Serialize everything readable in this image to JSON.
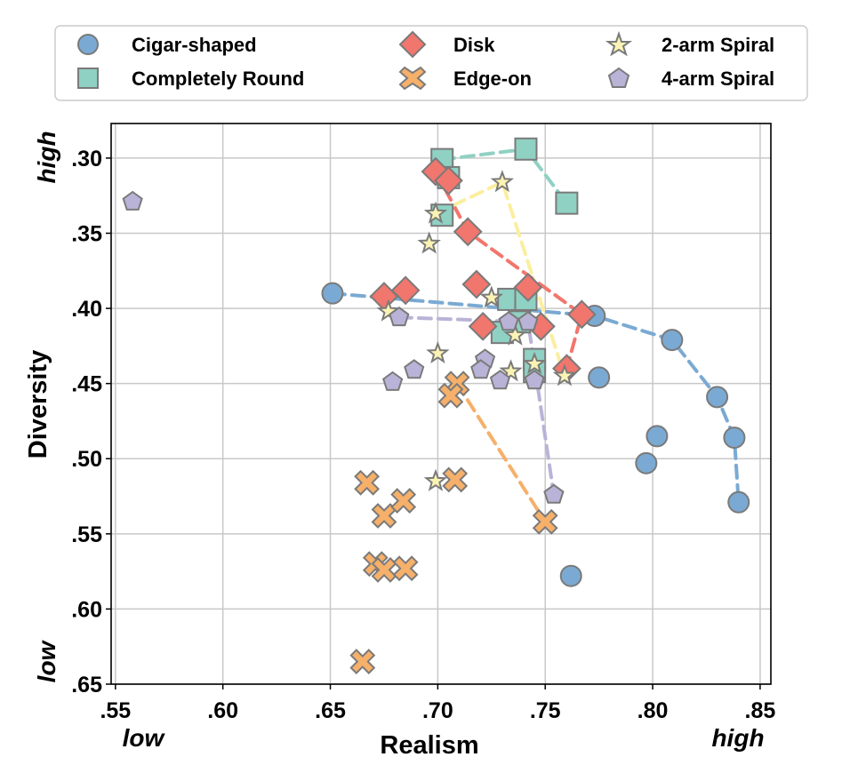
{
  "chart_data": {
    "type": "scatter",
    "xlabel": "Realism",
    "ylabel": "Diversity",
    "xlim": [
      0.548,
      0.855
    ],
    "ylim": [
      0.65,
      0.277
    ],
    "x_ticks": [
      {
        "value": 0.55,
        "label": ".55"
      },
      {
        "value": 0.6,
        "label": ".60"
      },
      {
        "value": 0.65,
        "label": ".65"
      },
      {
        "value": 0.7,
        "label": ".70"
      },
      {
        "value": 0.75,
        "label": ".75"
      },
      {
        "value": 0.8,
        "label": ".80"
      },
      {
        "value": 0.85,
        "label": ".85"
      }
    ],
    "y_ticks": [
      {
        "value": 0.3,
        "label": ".30"
      },
      {
        "value": 0.35,
        "label": ".35"
      },
      {
        "value": 0.4,
        "label": ".40"
      },
      {
        "value": 0.45,
        "label": ".45"
      },
      {
        "value": 0.5,
        "label": ".50"
      },
      {
        "value": 0.55,
        "label": ".55"
      },
      {
        "value": 0.6,
        "label": ".60"
      },
      {
        "value": 0.65,
        "label": ".65"
      }
    ],
    "annotations": {
      "x_low": "low",
      "x_high": "high",
      "y_high": "high",
      "y_low": "low"
    },
    "grid": true,
    "legend_position": "top",
    "series": [
      {
        "name": "Cigar-shaped",
        "marker": "circle",
        "color": "#7aaad3",
        "line_color": "#7aaad3",
        "points": [
          [
            0.651,
            0.39
          ],
          [
            0.773,
            0.405
          ],
          [
            0.775,
            0.446
          ],
          [
            0.809,
            0.421
          ],
          [
            0.83,
            0.459
          ],
          [
            0.802,
            0.485
          ],
          [
            0.838,
            0.486
          ],
          [
            0.797,
            0.503
          ],
          [
            0.84,
            0.529
          ],
          [
            0.762,
            0.578
          ]
        ],
        "trend": [
          [
            0.651,
            0.39
          ],
          [
            0.773,
            0.405
          ],
          [
            0.809,
            0.421
          ],
          [
            0.83,
            0.459
          ],
          [
            0.838,
            0.486
          ],
          [
            0.84,
            0.529
          ]
        ]
      },
      {
        "name": "Completely Round",
        "marker": "square",
        "color": "#8fd1c3",
        "line_color": "#8fd1c3",
        "points": [
          [
            0.702,
            0.301
          ],
          [
            0.705,
            0.313
          ],
          [
            0.741,
            0.294
          ],
          [
            0.76,
            0.33
          ],
          [
            0.702,
            0.338
          ],
          [
            0.733,
            0.394
          ],
          [
            0.741,
            0.394
          ],
          [
            0.738,
            0.409
          ],
          [
            0.73,
            0.416
          ],
          [
            0.745,
            0.434
          ],
          [
            0.745,
            0.442
          ]
        ],
        "trend": [
          [
            0.702,
            0.301
          ],
          [
            0.741,
            0.294
          ],
          [
            0.76,
            0.33
          ]
        ]
      },
      {
        "name": "Disk",
        "marker": "diamond",
        "color": "#f1766d",
        "line_color": "#f1766d",
        "points": [
          [
            0.699,
            0.309
          ],
          [
            0.705,
            0.315
          ],
          [
            0.714,
            0.349
          ],
          [
            0.718,
            0.384
          ],
          [
            0.742,
            0.386
          ],
          [
            0.675,
            0.392
          ],
          [
            0.685,
            0.388
          ],
          [
            0.767,
            0.404
          ],
          [
            0.748,
            0.412
          ],
          [
            0.721,
            0.412
          ],
          [
            0.76,
            0.44
          ]
        ],
        "trend": [
          [
            0.699,
            0.309
          ],
          [
            0.714,
            0.349
          ],
          [
            0.767,
            0.404
          ],
          [
            0.76,
            0.44
          ]
        ]
      },
      {
        "name": "Edge-on",
        "marker": "cross",
        "color": "#f6b06a",
        "line_color": "#f6b06a",
        "points": [
          [
            0.709,
            0.45
          ],
          [
            0.706,
            0.458
          ],
          [
            0.667,
            0.516
          ],
          [
            0.708,
            0.514
          ],
          [
            0.675,
            0.538
          ],
          [
            0.684,
            0.528
          ],
          [
            0.671,
            0.57
          ],
          [
            0.675,
            0.574
          ],
          [
            0.685,
            0.573
          ],
          [
            0.75,
            0.542
          ],
          [
            0.665,
            0.635
          ]
        ],
        "trend": [
          [
            0.709,
            0.45
          ],
          [
            0.75,
            0.542
          ]
        ]
      },
      {
        "name": "2-arm Spiral",
        "marker": "star",
        "color": "#fbf3b4",
        "line_color": "#fbee9e",
        "points": [
          [
            0.73,
            0.316
          ],
          [
            0.699,
            0.337
          ],
          [
            0.696,
            0.357
          ],
          [
            0.725,
            0.393
          ],
          [
            0.677,
            0.402
          ],
          [
            0.736,
            0.418
          ],
          [
            0.7,
            0.43
          ],
          [
            0.734,
            0.442
          ],
          [
            0.745,
            0.437
          ],
          [
            0.759,
            0.445
          ],
          [
            0.699,
            0.515
          ]
        ],
        "trend": [
          [
            0.699,
            0.337
          ],
          [
            0.73,
            0.316
          ],
          [
            0.759,
            0.445
          ]
        ]
      },
      {
        "name": "4-arm Spiral",
        "marker": "pentagon",
        "color": "#bab3d8",
        "line_color": "#bab3d8",
        "points": [
          [
            0.558,
            0.329
          ],
          [
            0.682,
            0.406
          ],
          [
            0.733,
            0.409
          ],
          [
            0.742,
            0.409
          ],
          [
            0.722,
            0.434
          ],
          [
            0.72,
            0.441
          ],
          [
            0.689,
            0.441
          ],
          [
            0.679,
            0.449
          ],
          [
            0.729,
            0.448
          ],
          [
            0.745,
            0.448
          ],
          [
            0.754,
            0.524
          ]
        ],
        "trend": [
          [
            0.682,
            0.406
          ],
          [
            0.742,
            0.409
          ],
          [
            0.754,
            0.524
          ]
        ]
      }
    ]
  }
}
